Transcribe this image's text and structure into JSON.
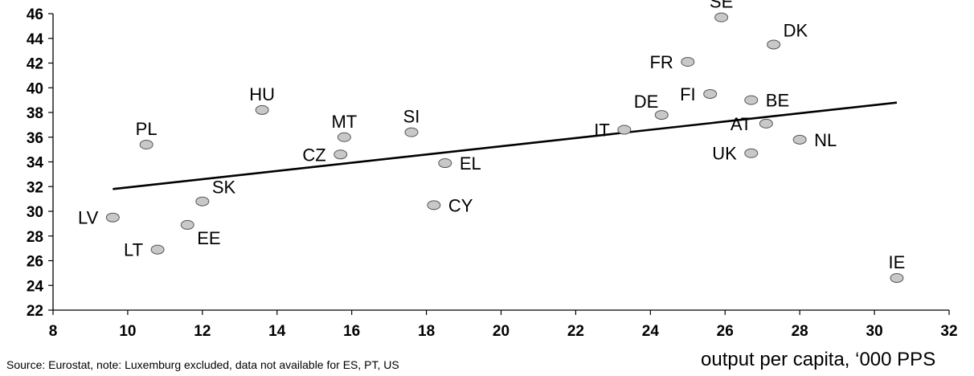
{
  "chart_data": {
    "type": "scatter",
    "title": "",
    "xlabel": "output per capita, ‘000 PPS",
    "ylabel": "",
    "xlim": [
      8,
      32
    ],
    "ylim": [
      22,
      46
    ],
    "xticks": [
      "8",
      "10",
      "12",
      "14",
      "16",
      "18",
      "20",
      "22",
      "24",
      "26",
      "28",
      "30",
      "32"
    ],
    "yticks": [
      "22",
      "24",
      "26",
      "28",
      "30",
      "32",
      "34",
      "36",
      "38",
      "40",
      "42",
      "44",
      "46"
    ],
    "grid": false,
    "legend": "none",
    "point_color": "#c8c8c8",
    "trendline": {
      "x1": 9.6,
      "y1": 31.8,
      "x2": 30.6,
      "y2": 38.8
    },
    "points": [
      {
        "label": "LV",
        "x": 9.6,
        "y": 29.5,
        "pos": "left"
      },
      {
        "label": "PL",
        "x": 10.5,
        "y": 35.4,
        "pos": "above"
      },
      {
        "label": "LT",
        "x": 10.8,
        "y": 26.9,
        "pos": "left"
      },
      {
        "label": "EE",
        "x": 11.6,
        "y": 28.9,
        "pos": "below-right"
      },
      {
        "label": "SK",
        "x": 12.0,
        "y": 30.8,
        "pos": "above-right"
      },
      {
        "label": "HU",
        "x": 13.6,
        "y": 38.2,
        "pos": "above"
      },
      {
        "label": "CZ",
        "x": 15.7,
        "y": 34.6,
        "pos": "left"
      },
      {
        "label": "MT",
        "x": 15.8,
        "y": 36.0,
        "pos": "above"
      },
      {
        "label": "SI",
        "x": 17.6,
        "y": 36.4,
        "pos": "above"
      },
      {
        "label": "CY",
        "x": 18.2,
        "y": 30.5,
        "pos": "right"
      },
      {
        "label": "EL",
        "x": 18.5,
        "y": 33.9,
        "pos": "right"
      },
      {
        "label": "IT",
        "x": 23.3,
        "y": 36.6,
        "pos": "left"
      },
      {
        "label": "DE",
        "x": 24.3,
        "y": 37.8,
        "pos": "above-left"
      },
      {
        "label": "FR",
        "x": 25.0,
        "y": 42.1,
        "pos": "left"
      },
      {
        "label": "FI",
        "x": 25.6,
        "y": 39.5,
        "pos": "left"
      },
      {
        "label": "SE",
        "x": 25.9,
        "y": 45.7,
        "pos": "above"
      },
      {
        "label": "BE",
        "x": 26.7,
        "y": 39.0,
        "pos": "right"
      },
      {
        "label": "UK",
        "x": 26.7,
        "y": 34.7,
        "pos": "left"
      },
      {
        "label": "AT",
        "x": 27.1,
        "y": 37.1,
        "pos": "left"
      },
      {
        "label": "DK",
        "x": 27.3,
        "y": 43.5,
        "pos": "above-right"
      },
      {
        "label": "NL",
        "x": 28.0,
        "y": 35.8,
        "pos": "right"
      },
      {
        "label": "IE",
        "x": 30.6,
        "y": 24.6,
        "pos": "above"
      }
    ]
  },
  "source_note": "Source: Eurostat, note: Luxemburg excluded, data not available for ES, PT, US"
}
